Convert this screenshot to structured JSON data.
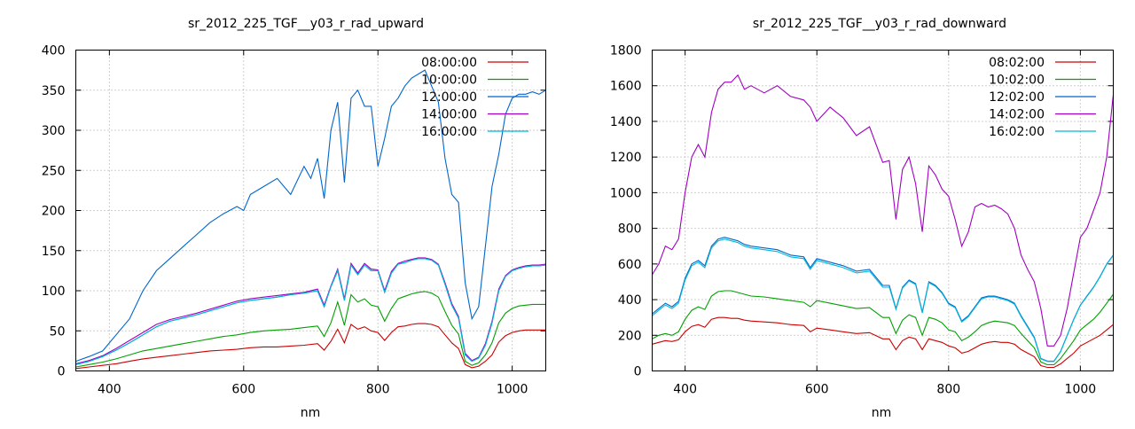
{
  "chart_data": [
    {
      "type": "line",
      "title": "sr_2012_225_TGF__y03_r_rad_upward",
      "xlabel": "nm",
      "ylabel": "",
      "xlim": [
        350,
        1050
      ],
      "ylim": [
        0,
        400
      ],
      "x_ticks": [
        "400",
        "600",
        "800",
        "1000"
      ],
      "y_ticks": [
        "0",
        "50",
        "100",
        "150",
        "200",
        "250",
        "300",
        "350",
        "400"
      ],
      "grid": true,
      "legend_position": "top-right",
      "x": [
        350,
        370,
        390,
        410,
        430,
        450,
        470,
        490,
        510,
        530,
        550,
        570,
        590,
        610,
        630,
        650,
        670,
        690,
        710,
        720,
        730,
        740,
        750,
        760,
        770,
        780,
        790,
        800,
        810,
        820,
        830,
        840,
        850,
        860,
        870,
        880,
        890,
        900,
        910,
        920,
        930,
        940,
        950,
        960,
        970,
        980,
        990,
        1000,
        1010,
        1020,
        1030,
        1040,
        1050
      ],
      "series": [
        {
          "name": "08:00:00",
          "color": "#cc0000",
          "values": [
            3,
            5,
            7,
            9,
            12,
            15,
            17,
            19,
            21,
            23,
            25,
            26,
            27,
            29,
            30,
            30,
            31,
            32,
            34,
            26,
            37,
            52,
            35,
            58,
            52,
            55,
            50,
            48,
            38,
            48,
            55,
            56,
            58,
            59,
            59,
            58,
            55,
            45,
            35,
            28,
            8,
            4,
            6,
            12,
            20,
            36,
            44,
            48,
            50,
            51,
            51,
            51,
            51
          ]
        },
        {
          "name": "10:00:00",
          "color": "#00a000",
          "values": [
            5,
            8,
            11,
            15,
            20,
            25,
            28,
            31,
            34,
            37,
            40,
            43,
            45,
            48,
            50,
            51,
            52,
            54,
            56,
            43,
            60,
            86,
            57,
            95,
            86,
            90,
            82,
            80,
            62,
            78,
            90,
            93,
            96,
            98,
            99,
            97,
            92,
            74,
            57,
            46,
            12,
            7,
            10,
            20,
            35,
            60,
            72,
            78,
            81,
            82,
            83,
            83,
            83
          ]
        },
        {
          "name": "12:00:00",
          "color": "#0066cc",
          "values": [
            8,
            12,
            18,
            26,
            35,
            45,
            55,
            62,
            66,
            70,
            75,
            80,
            85,
            88,
            90,
            92,
            95,
            97,
            100,
            80,
            105,
            125,
            88,
            132,
            120,
            132,
            125,
            125,
            98,
            122,
            133,
            135,
            138,
            140,
            140,
            138,
            132,
            108,
            82,
            66,
            20,
            12,
            16,
            32,
            60,
            100,
            118,
            125,
            128,
            130,
            131,
            131,
            132
          ]
        },
        {
          "name": "14:00:00",
          "color": "#a000c0",
          "values": [
            9,
            13,
            19,
            28,
            38,
            48,
            58,
            64,
            68,
            72,
            77,
            82,
            87,
            90,
            92,
            94,
            96,
            98,
            102,
            82,
            106,
            127,
            90,
            134,
            122,
            134,
            127,
            126,
            100,
            124,
            134,
            137,
            139,
            141,
            141,
            139,
            133,
            110,
            84,
            68,
            22,
            13,
            17,
            34,
            62,
            102,
            119,
            126,
            129,
            131,
            132,
            132,
            133
          ]
        },
        {
          "name": "16:00:00",
          "color": "#00b8d8",
          "values": [
            8,
            12,
            18,
            26,
            35,
            45,
            55,
            62,
            66,
            70,
            75,
            80,
            85,
            88,
            90,
            92,
            95,
            97,
            100,
            80,
            105,
            125,
            88,
            132,
            120,
            132,
            125,
            125,
            98,
            122,
            133,
            135,
            138,
            140,
            140,
            138,
            132,
            108,
            82,
            66,
            20,
            12,
            16,
            32,
            60,
            100,
            118,
            125,
            128,
            130,
            131,
            131,
            132
          ]
        }
      ],
      "overlay": {
        "color": "#0066cc",
        "x": [
          350,
          370,
          390,
          410,
          430,
          450,
          470,
          490,
          510,
          530,
          550,
          570,
          590,
          600,
          610,
          630,
          650,
          670,
          690,
          700,
          710,
          720,
          730,
          740,
          750,
          760,
          770,
          780,
          790,
          800,
          810,
          820,
          830,
          840,
          850,
          860,
          870,
          880,
          890,
          900,
          910,
          920,
          930,
          940,
          950,
          960,
          970,
          980,
          990,
          1000,
          1010,
          1020,
          1030,
          1040,
          1050
        ],
        "values": [
          12,
          18,
          25,
          45,
          65,
          100,
          125,
          140,
          155,
          170,
          185,
          196,
          205,
          200,
          220,
          230,
          240,
          220,
          255,
          240,
          265,
          215,
          300,
          335,
          235,
          340,
          350,
          330,
          330,
          255,
          290,
          330,
          340,
          355,
          365,
          370,
          375,
          355,
          335,
          265,
          220,
          210,
          110,
          65,
          80,
          155,
          230,
          270,
          320,
          340,
          345,
          345,
          348,
          345,
          350
        ]
      }
    },
    {
      "type": "line",
      "title": "sr_2012_225_TGF__y03_r_rad_downward",
      "xlabel": "nm",
      "ylabel": "",
      "xlim": [
        350,
        1050
      ],
      "ylim": [
        0,
        1800
      ],
      "x_ticks": [
        "400",
        "600",
        "800",
        "1000"
      ],
      "y_ticks": [
        "0",
        "200",
        "400",
        "600",
        "800",
        "1000",
        "1200",
        "1400",
        "1600",
        "1800"
      ],
      "grid": true,
      "legend_position": "top-right",
      "x": [
        350,
        360,
        370,
        380,
        390,
        400,
        410,
        420,
        430,
        440,
        450,
        460,
        470,
        480,
        490,
        500,
        520,
        540,
        560,
        580,
        590,
        600,
        620,
        640,
        660,
        680,
        700,
        710,
        720,
        730,
        740,
        750,
        760,
        770,
        780,
        790,
        800,
        810,
        820,
        830,
        840,
        850,
        860,
        870,
        880,
        890,
        900,
        910,
        920,
        930,
        940,
        950,
        960,
        970,
        980,
        990,
        1000,
        1010,
        1020,
        1030,
        1040,
        1050
      ],
      "series": [
        {
          "name": "08:02:00",
          "color": "#cc0000",
          "values": [
            150,
            160,
            170,
            165,
            175,
            220,
            250,
            260,
            245,
            290,
            300,
            300,
            295,
            295,
            285,
            280,
            275,
            270,
            260,
            255,
            220,
            240,
            230,
            220,
            210,
            215,
            180,
            180,
            120,
            170,
            190,
            180,
            120,
            180,
            170,
            160,
            140,
            130,
            100,
            110,
            130,
            150,
            160,
            165,
            160,
            160,
            150,
            120,
            100,
            80,
            30,
            20,
            20,
            40,
            70,
            100,
            140,
            160,
            180,
            200,
            230,
            260
          ]
        },
        {
          "name": "10:02:00",
          "color": "#00a000",
          "values": [
            180,
            200,
            210,
            200,
            220,
            290,
            340,
            360,
            345,
            420,
            445,
            450,
            450,
            440,
            430,
            420,
            415,
            405,
            395,
            385,
            360,
            395,
            380,
            365,
            350,
            355,
            300,
            300,
            210,
            285,
            315,
            300,
            200,
            300,
            290,
            270,
            230,
            220,
            170,
            190,
            220,
            255,
            270,
            280,
            275,
            270,
            255,
            210,
            170,
            130,
            50,
            35,
            35,
            70,
            120,
            170,
            230,
            260,
            290,
            330,
            380,
            430
          ]
        },
        {
          "name": "12:02:00",
          "color": "#0066cc",
          "values": [
            320,
            350,
            380,
            360,
            390,
            520,
            600,
            620,
            590,
            700,
            740,
            750,
            740,
            730,
            710,
            700,
            690,
            680,
            650,
            640,
            580,
            630,
            610,
            590,
            560,
            570,
            480,
            480,
            350,
            470,
            510,
            490,
            330,
            500,
            480,
            440,
            380,
            360,
            280,
            310,
            360,
            410,
            420,
            420,
            410,
            400,
            380,
            310,
            250,
            190,
            70,
            55,
            55,
            110,
            200,
            290,
            370,
            420,
            470,
            530,
            600,
            650
          ]
        },
        {
          "name": "14:02:00",
          "color": "#a000c0",
          "values": [
            540,
            600,
            700,
            680,
            740,
            1000,
            1200,
            1270,
            1200,
            1450,
            1580,
            1620,
            1620,
            1660,
            1580,
            1600,
            1560,
            1600,
            1540,
            1520,
            1480,
            1400,
            1480,
            1420,
            1320,
            1370,
            1170,
            1180,
            850,
            1130,
            1200,
            1050,
            780,
            1150,
            1100,
            1020,
            980,
            850,
            700,
            780,
            920,
            940,
            920,
            930,
            910,
            880,
            800,
            650,
            570,
            500,
            350,
            140,
            140,
            200,
            350,
            550,
            750,
            800,
            900,
            1000,
            1200,
            1550
          ]
        },
        {
          "name": "16:02:00",
          "color": "#00b8d8",
          "values": [
            310,
            340,
            370,
            350,
            380,
            510,
            590,
            610,
            580,
            690,
            730,
            740,
            730,
            720,
            700,
            690,
            680,
            670,
            640,
            630,
            570,
            620,
            600,
            580,
            550,
            560,
            470,
            470,
            345,
            465,
            505,
            485,
            325,
            495,
            475,
            435,
            375,
            355,
            275,
            305,
            355,
            405,
            415,
            415,
            405,
            395,
            375,
            305,
            245,
            185,
            68,
            53,
            53,
            108,
            198,
            288,
            368,
            418,
            468,
            528,
            598,
            648
          ]
        }
      ],
      "overlay": null
    }
  ]
}
